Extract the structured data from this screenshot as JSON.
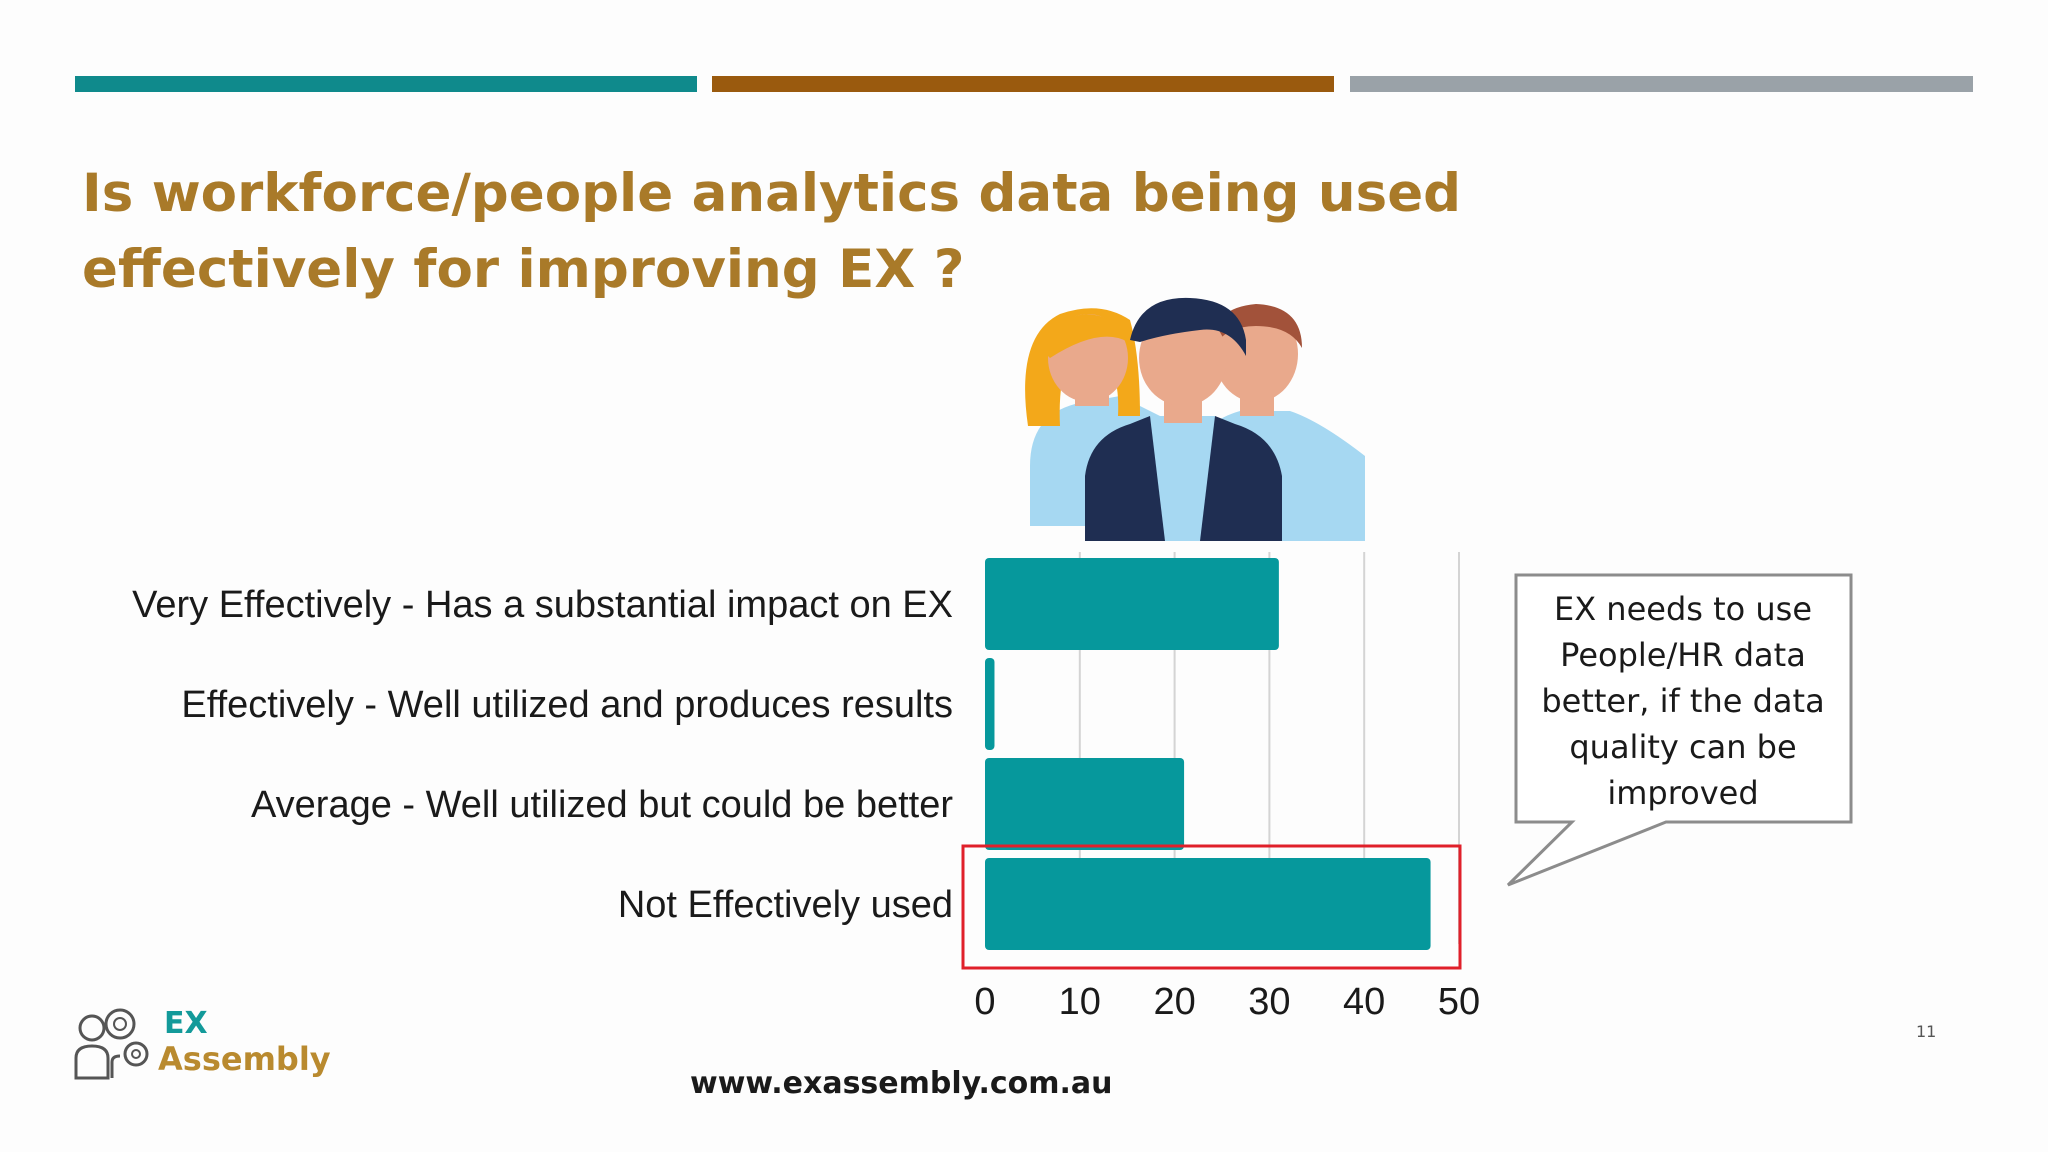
{
  "top_bars": [
    {
      "color": "#0f8a8c"
    },
    {
      "color": "#9a5a0e"
    },
    {
      "color": "#9aa2a8"
    }
  ],
  "title": "Is workforce/people analytics data being used effectively for improving EX ?",
  "illustration": {
    "icon": "people-group-icon"
  },
  "chart_data": {
    "type": "bar",
    "orientation": "horizontal",
    "title": "",
    "xlabel": "",
    "ylabel": "",
    "categories": [
      "Very Effectively - Has a substantial impact on EX",
      "Effectively - Well utilized and produces results",
      "Average - Well utilized but could be better",
      "Not Effectively used"
    ],
    "values": [
      31,
      1,
      21,
      47
    ],
    "xlim": [
      0,
      50
    ],
    "xticks": [
      "0",
      "10",
      "20",
      "30",
      "40",
      "50"
    ],
    "grid": true,
    "bar_color": "#06989c",
    "highlight": {
      "category": "Not Effectively used",
      "color": "#e0202a"
    }
  },
  "callout": {
    "lines": [
      "EX needs to use",
      "People/HR data",
      "better, if the data",
      "quality can be",
      "improved"
    ]
  },
  "logo": {
    "line1": "EX",
    "line2": "Assembly",
    "icon": "people-gear-icon"
  },
  "footer": {
    "url": "www.exassembly.com.au",
    "page_number": "11"
  }
}
